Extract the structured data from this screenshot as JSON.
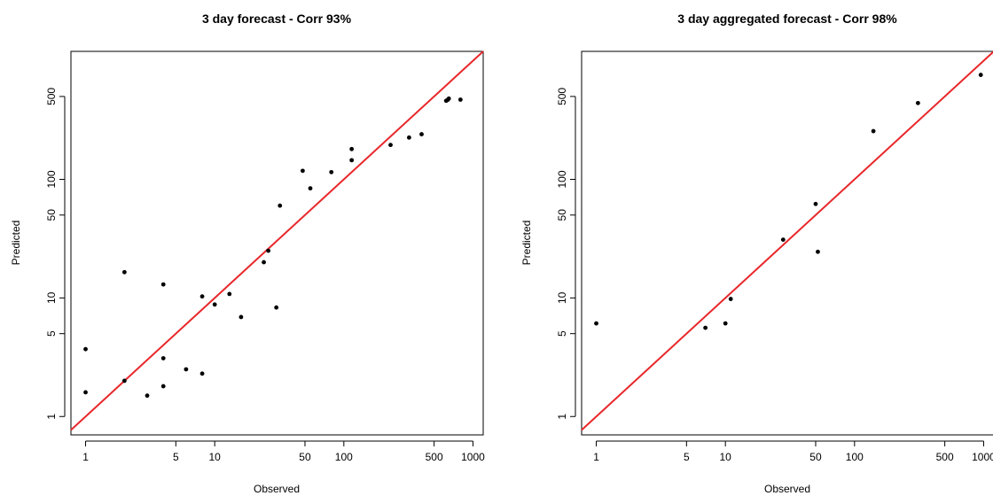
{
  "chart_data": [
    {
      "type": "scatter",
      "title": "3 day forecast - Corr 93%",
      "xlabel": "Observed",
      "ylabel": "Predicted",
      "xscale": "log",
      "yscale": "log",
      "xlim": [
        0.77,
        1200
      ],
      "ylim": [
        0.7,
        1200
      ],
      "xticks": [
        1,
        5,
        10,
        50,
        100,
        500,
        1000
      ],
      "xtick_labels": [
        "1",
        "5",
        "10",
        "50",
        "100",
        "500",
        "1000"
      ],
      "yticks": [
        1,
        5,
        10,
        50,
        100,
        500
      ],
      "ytick_labels": [
        "1",
        "5",
        "10",
        "50",
        "100",
        "500"
      ],
      "reference_line": "y = x",
      "line_color": "#e8282b",
      "point_color": "#000000",
      "grid": false,
      "points": [
        {
          "x": 1,
          "y": 3.7
        },
        {
          "x": 1,
          "y": 1.6
        },
        {
          "x": 2,
          "y": 2.0
        },
        {
          "x": 2,
          "y": 16.5
        },
        {
          "x": 3,
          "y": 1.5
        },
        {
          "x": 4,
          "y": 13
        },
        {
          "x": 4,
          "y": 3.1
        },
        {
          "x": 4,
          "y": 1.8
        },
        {
          "x": 6,
          "y": 2.5
        },
        {
          "x": 8,
          "y": 10.3
        },
        {
          "x": 8,
          "y": 2.3
        },
        {
          "x": 10,
          "y": 8.8
        },
        {
          "x": 13,
          "y": 10.8
        },
        {
          "x": 16,
          "y": 6.9
        },
        {
          "x": 24,
          "y": 20
        },
        {
          "x": 26,
          "y": 25
        },
        {
          "x": 30,
          "y": 8.3
        },
        {
          "x": 32,
          "y": 60
        },
        {
          "x": 48,
          "y": 118
        },
        {
          "x": 55,
          "y": 84
        },
        {
          "x": 80,
          "y": 115
        },
        {
          "x": 115,
          "y": 145
        },
        {
          "x": 115,
          "y": 180
        },
        {
          "x": 230,
          "y": 195
        },
        {
          "x": 320,
          "y": 225
        },
        {
          "x": 400,
          "y": 240
        },
        {
          "x": 620,
          "y": 460
        },
        {
          "x": 640,
          "y": 470
        },
        {
          "x": 650,
          "y": 480
        },
        {
          "x": 800,
          "y": 470
        }
      ]
    },
    {
      "type": "scatter",
      "title": "3 day aggregated forecast - Corr 98%",
      "xlabel": "Observed",
      "ylabel": "Predicted",
      "xscale": "log",
      "yscale": "log",
      "xlim": [
        0.77,
        1200
      ],
      "ylim": [
        0.7,
        1200
      ],
      "xticks": [
        1,
        5,
        10,
        50,
        100,
        500,
        1000
      ],
      "xtick_labels": [
        "1",
        "5",
        "10",
        "50",
        "100",
        "500",
        "1000"
      ],
      "yticks": [
        1,
        5,
        10,
        50,
        100,
        500
      ],
      "ytick_labels": [
        "1",
        "5",
        "10",
        "50",
        "100",
        "500"
      ],
      "reference_line": "y = x",
      "line_color": "#e8282b",
      "point_color": "#000000",
      "grid": false,
      "points": [
        {
          "x": 1,
          "y": 6.1
        },
        {
          "x": 7,
          "y": 5.6
        },
        {
          "x": 10,
          "y": 6.1
        },
        {
          "x": 11,
          "y": 9.8
        },
        {
          "x": 28,
          "y": 31
        },
        {
          "x": 50,
          "y": 62
        },
        {
          "x": 52,
          "y": 24.5
        },
        {
          "x": 140,
          "y": 255
        },
        {
          "x": 310,
          "y": 440
        },
        {
          "x": 950,
          "y": 760
        }
      ]
    }
  ]
}
